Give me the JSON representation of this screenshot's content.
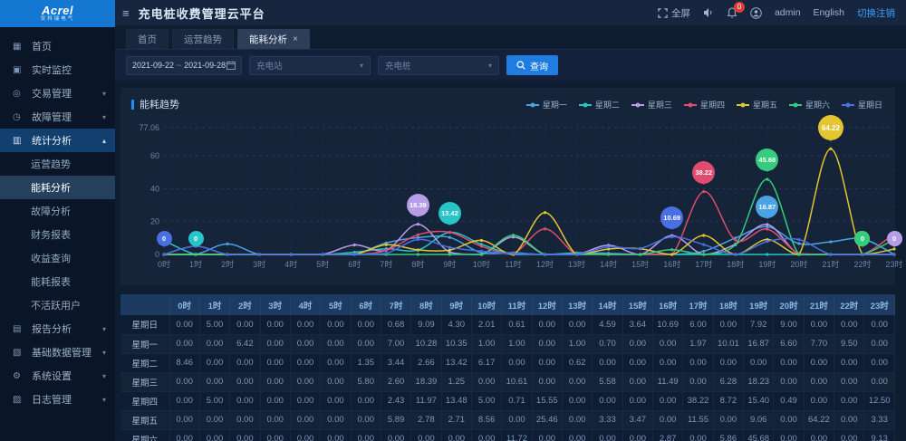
{
  "brand": {
    "logo_main": "Acrel",
    "logo_sub": "安科瑞电气"
  },
  "header": {
    "collapse_icon": "≡",
    "title": "充电桩收费管理云平台",
    "fullscreen_label": "全屏",
    "badge_count": "0",
    "username": "admin",
    "language": "English",
    "logout_label": "切换注销"
  },
  "sidebar": {
    "items": [
      {
        "id": "home",
        "icon": "▦",
        "label": "首页"
      },
      {
        "id": "realtime-monitor",
        "icon": "▣",
        "label": "实时监控"
      },
      {
        "id": "transaction-mgmt",
        "icon": "◎",
        "label": "交易管理",
        "chevron": "down"
      },
      {
        "id": "fault-mgmt",
        "icon": "◷",
        "label": "故障管理",
        "chevron": "down"
      },
      {
        "id": "statistics-analysis",
        "icon": "▥",
        "label": "统计分析",
        "chevron": "up",
        "parent_active": true,
        "children": [
          {
            "id": "operation-trend",
            "label": "运营趋势"
          },
          {
            "id": "energy-analysis",
            "label": "能耗分析",
            "selected": true
          },
          {
            "id": "fault-analysis",
            "label": "故障分析"
          },
          {
            "id": "financial-report",
            "label": "财务报表"
          },
          {
            "id": "revenue-query",
            "label": "收益查询"
          },
          {
            "id": "energy-report",
            "label": "能耗报表"
          },
          {
            "id": "inactive-users",
            "label": "不活跃用户"
          }
        ]
      },
      {
        "id": "report-analysis",
        "icon": "▤",
        "label": "报告分析",
        "chevron": "down"
      },
      {
        "id": "basic-data-mgmt",
        "icon": "▧",
        "label": "基础数据管理",
        "chevron": "down"
      },
      {
        "id": "system-settings",
        "icon": "⚙",
        "label": "系统设置",
        "chevron": "down"
      },
      {
        "id": "log-mgmt",
        "icon": "▨",
        "label": "日志管理",
        "chevron": "down"
      }
    ]
  },
  "tabs": [
    {
      "label": "首页",
      "active": false,
      "closable": false
    },
    {
      "label": "运营趋势",
      "active": false,
      "closable": false
    },
    {
      "label": "能耗分析",
      "active": true,
      "closable": true
    }
  ],
  "filters": {
    "date_start": "2021-09-22",
    "date_separator": "~",
    "date_end": "2021-09-28",
    "station_placeholder": "充电站",
    "pile_placeholder": "充电桩",
    "search_label": "查询"
  },
  "panel": {
    "title": "能耗趋势"
  },
  "chart_data": {
    "type": "line",
    "title": "能耗趋势",
    "x": [
      "0时",
      "1时",
      "2时",
      "3时",
      "4时",
      "5时",
      "6时",
      "7时",
      "8时",
      "9时",
      "10时",
      "11时",
      "12时",
      "13时",
      "14时",
      "15时",
      "16时",
      "17时",
      "18时",
      "19时",
      "20时",
      "21时",
      "22时",
      "23时"
    ],
    "ylim": [
      0,
      77.06
    ],
    "y_ticks": [
      0,
      20,
      40,
      60,
      77.06
    ],
    "grid": "dashed",
    "legend_position": "top-right",
    "smooth": true,
    "series": [
      {
        "name": "星期一",
        "color": "#4ba3e3",
        "values": [
          0,
          0,
          6.42,
          0,
          0,
          0,
          0,
          7.0,
          10.28,
          10.35,
          1.0,
          1.0,
          0,
          1.0,
          0.7,
          0,
          0,
          1.97,
          10.01,
          16.87,
          6.6,
          7.7,
          9.5,
          0
        ]
      },
      {
        "name": "星期二",
        "color": "#27c5c9",
        "values": [
          8.46,
          0,
          0,
          0,
          0,
          0,
          1.35,
          3.44,
          2.66,
          13.42,
          6.17,
          0,
          0,
          0.62,
          0,
          0,
          0,
          0,
          0,
          0,
          0,
          0,
          0,
          0
        ]
      },
      {
        "name": "星期三",
        "color": "#b79ce8",
        "values": [
          0,
          0,
          0,
          0,
          0,
          0,
          5.8,
          2.6,
          18.39,
          1.25,
          0,
          10.61,
          0,
          0,
          5.58,
          0,
          11.49,
          0,
          6.28,
          18.23,
          0,
          0,
          0,
          0
        ]
      },
      {
        "name": "星期四",
        "color": "#e14b6e",
        "values": [
          0,
          5.0,
          0,
          0,
          0,
          0,
          0,
          2.43,
          11.97,
          13.48,
          5.0,
          0.71,
          15.55,
          0,
          0,
          0,
          0,
          38.22,
          8.72,
          15.4,
          0.49,
          0,
          0,
          12.5
        ]
      },
      {
        "name": "星期五",
        "color": "#e3c431",
        "values": [
          0,
          0,
          0,
          0,
          0,
          0,
          0,
          5.89,
          2.78,
          2.71,
          8.56,
          0,
          25.46,
          0,
          3.33,
          3.47,
          0,
          11.55,
          0,
          9.06,
          0,
          64.22,
          0,
          3.33
        ]
      },
      {
        "name": "星期六",
        "color": "#35cd7d",
        "values": [
          0,
          0,
          0,
          0,
          0,
          0,
          0,
          0,
          0,
          0,
          0,
          11.72,
          0,
          0,
          0,
          0,
          2.87,
          0,
          5.86,
          45.68,
          0,
          0,
          0,
          9.13
        ]
      },
      {
        "name": "星期日",
        "color": "#4a6fe3",
        "values": [
          0,
          5.0,
          0,
          0,
          0,
          0,
          0,
          0.68,
          9.09,
          4.3,
          2.01,
          0.61,
          0,
          0,
          4.59,
          3.64,
          10.69,
          6.0,
          0,
          7.92,
          9.0,
          0,
          0,
          0
        ]
      }
    ],
    "mark_points": [
      {
        "series": "星期日",
        "hour": 0,
        "value": "0",
        "small": true
      },
      {
        "series": "星期二",
        "hour": 1,
        "value": "0",
        "small": true
      },
      {
        "series": "星期三",
        "hour": 8,
        "value": "18.39"
      },
      {
        "series": "星期二",
        "hour": 9,
        "value": "13.42"
      },
      {
        "series": "星期日",
        "hour": 16,
        "value": "10.69"
      },
      {
        "series": "星期四",
        "hour": 17,
        "value": "38.22"
      },
      {
        "series": "星期一",
        "hour": 19,
        "value": "16.87"
      },
      {
        "series": "星期六",
        "hour": 19,
        "value": "45.68"
      },
      {
        "series": "星期五",
        "hour": 21,
        "value": "64.22",
        "big": true
      },
      {
        "series": "星期四",
        "hour": 22,
        "value": "0",
        "small": true
      },
      {
        "series": "星期五",
        "hour": 22,
        "value": "0",
        "small": true
      },
      {
        "series": "星期六",
        "hour": 22,
        "value": "0",
        "small": true
      },
      {
        "series": "星期一",
        "hour": 23,
        "value": "0",
        "small": true
      },
      {
        "series": "星期三",
        "hour": 23,
        "value": "0",
        "small": true
      }
    ],
    "table_row_order": [
      "星期日",
      "星期一",
      "星期二",
      "星期三",
      "星期四",
      "星期五",
      "星期六"
    ]
  }
}
